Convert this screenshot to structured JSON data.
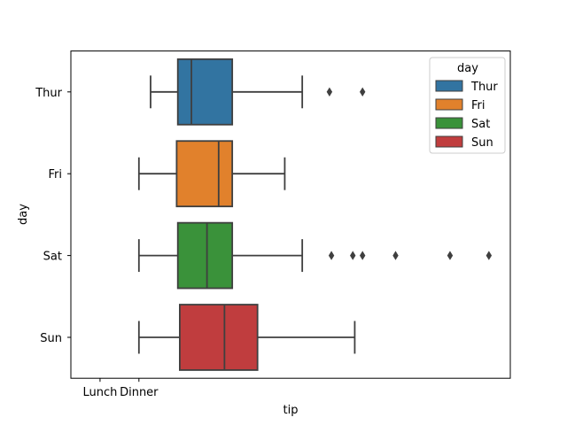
{
  "chart_data": {
    "type": "boxplot-horizontal",
    "xlabel": "tip",
    "ylabel": "day",
    "x_tick_labels": [
      "Lunch",
      "Dinner"
    ],
    "categories": [
      "Thur",
      "Fri",
      "Sat",
      "Sun"
    ],
    "colors": [
      "#3274a1",
      "#e1812c",
      "#3a923a",
      "#c03d3e"
    ],
    "boxes": [
      {
        "category": "Thur",
        "whisker_low": 0.3,
        "q1": 1.0,
        "median": 1.35,
        "q3": 2.4,
        "whisker_high": 4.2,
        "outliers": [
          4.9,
          5.75
        ]
      },
      {
        "category": "Fri",
        "whisker_low": 0.0,
        "q1": 0.97,
        "median": 2.05,
        "q3": 2.4,
        "whisker_high": 3.75,
        "outliers": []
      },
      {
        "category": "Sat",
        "whisker_low": 0.0,
        "q1": 1.0,
        "median": 1.75,
        "q3": 2.4,
        "whisker_high": 4.2,
        "outliers": [
          4.95,
          5.5,
          5.75,
          6.6,
          8.0,
          9.0
        ]
      },
      {
        "category": "Sun",
        "whisker_low": 0.0,
        "q1": 1.05,
        "median": 2.2,
        "q3": 3.05,
        "whisker_high": 5.55,
        "outliers": []
      }
    ],
    "xlim": [
      -1.75,
      9.55
    ],
    "x_tick_positions": [
      -1.0,
      0.0
    ],
    "legend": {
      "title": "day",
      "position": "top-right",
      "entries": [
        "Thur",
        "Fri",
        "Sat",
        "Sun"
      ]
    },
    "grid": false
  }
}
